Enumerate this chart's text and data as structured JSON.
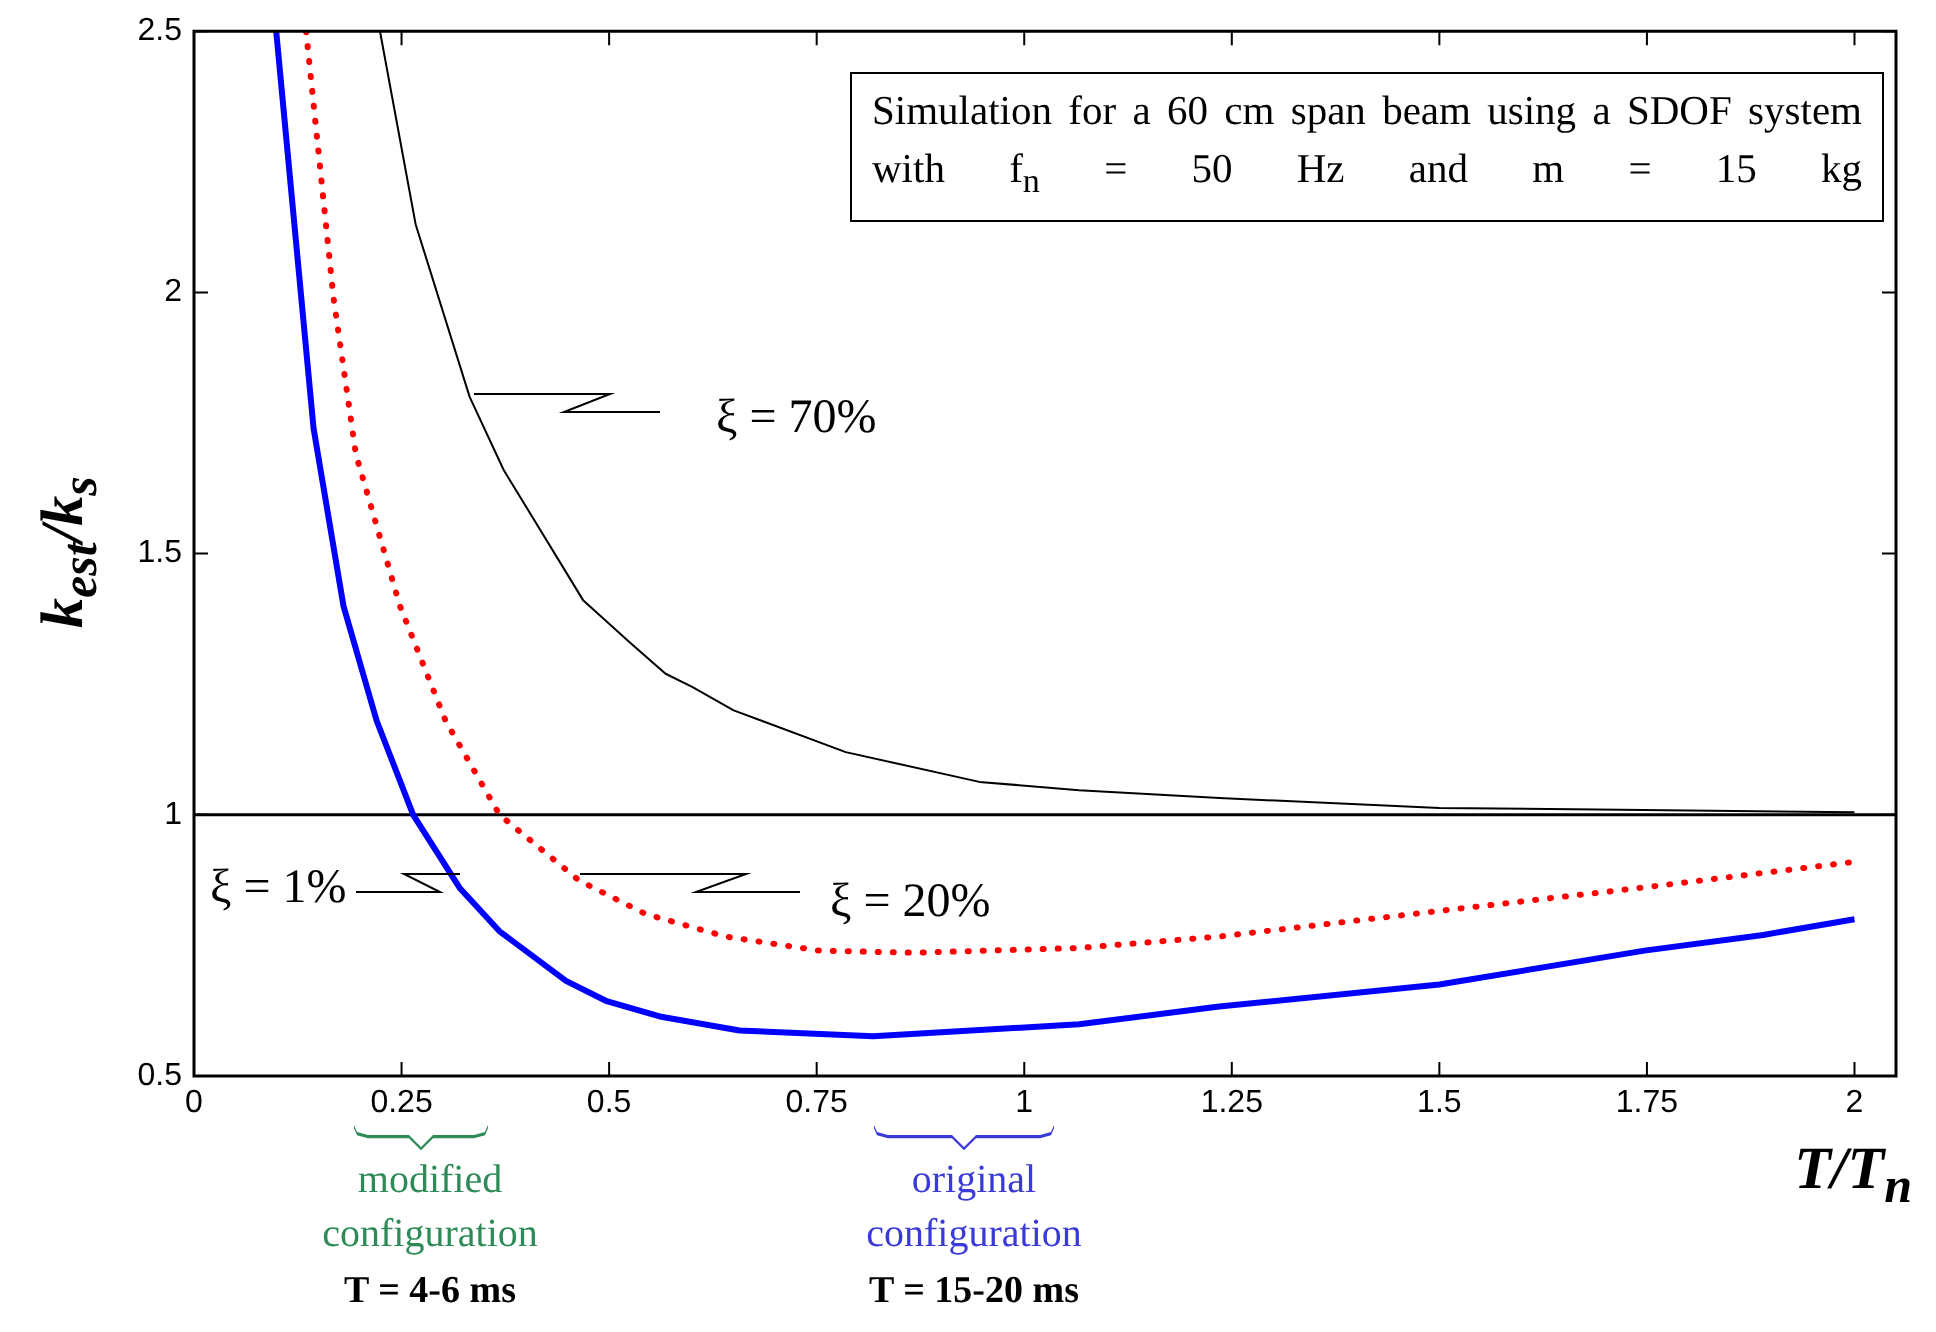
{
  "chart_data": {
    "type": "line",
    "xlabel": "T/T$_{n}$",
    "ylabel": "k$_{est}$/k$_{s}$",
    "xlim": [
      0,
      2.05
    ],
    "ylim": [
      0.5,
      2.5
    ],
    "xticks": [
      0,
      0.25,
      0.5,
      0.75,
      1,
      1.25,
      1.5,
      1.75,
      2
    ],
    "yticks": [
      0.5,
      1,
      1.5,
      2,
      2.5
    ],
    "grid": false,
    "legend": false,
    "marker": "none",
    "series": [
      {
        "color": "#000000",
        "line_style": "solid",
        "x": [
          0.224,
          0.267,
          0.332,
          0.373,
          0.469,
          0.525,
          0.568,
          0.6,
          0.65,
          0.785,
          0.946,
          1.066,
          1.235,
          1.5,
          1.69,
          2.0
        ],
        "values": [
          2.5,
          2.13,
          1.8,
          1.66,
          1.41,
          1.33,
          1.27,
          1.245,
          1.2,
          1.12,
          1.063,
          1.047,
          1.032,
          1.013,
          1.01,
          1.005
        ]
      },
      {
        "color": "#ff0000",
        "line_style": "dotted",
        "x": [
          0.135,
          0.168,
          0.195,
          0.248,
          0.303,
          0.368,
          0.464,
          0.544,
          0.64,
          0.753,
          0.866,
          1.066,
          1.235,
          1.5,
          1.747,
          2.0
        ],
        "values": [
          2.5,
          1.99,
          1.69,
          1.4,
          1.18,
          1.0,
          0.874,
          0.81,
          0.767,
          0.74,
          0.736,
          0.745,
          0.767,
          0.816,
          0.861,
          0.91
        ]
      },
      {
        "color": "#0000ff",
        "line_style": "solid",
        "x": [
          0.099,
          0.144,
          0.18,
          0.22,
          0.264,
          0.32,
          0.368,
          0.448,
          0.496,
          0.561,
          0.657,
          0.818,
          1.066,
          1.235,
          1.5,
          1.747,
          1.89,
          2.0
        ],
        "values": [
          2.5,
          1.74,
          1.4,
          1.18,
          1.0,
          0.86,
          0.777,
          0.682,
          0.644,
          0.614,
          0.587,
          0.576,
          0.599,
          0.633,
          0.675,
          0.74,
          0.77,
          0.8
        ]
      }
    ],
    "ref_lines": [
      {
        "axis": "y",
        "value": 1,
        "color": "#000000"
      }
    ],
    "annotations": [
      "ξ = 70%",
      "ξ = 20%",
      "ξ = 1%",
      "modified configuration",
      "T = 4-6 ms",
      "original configuration",
      "T = 15-20 ms",
      "Simulation for a 60 cm span beam using a SDOF system with f$_{n}$ = 50 Hz and m = 15 kg"
    ]
  }
}
